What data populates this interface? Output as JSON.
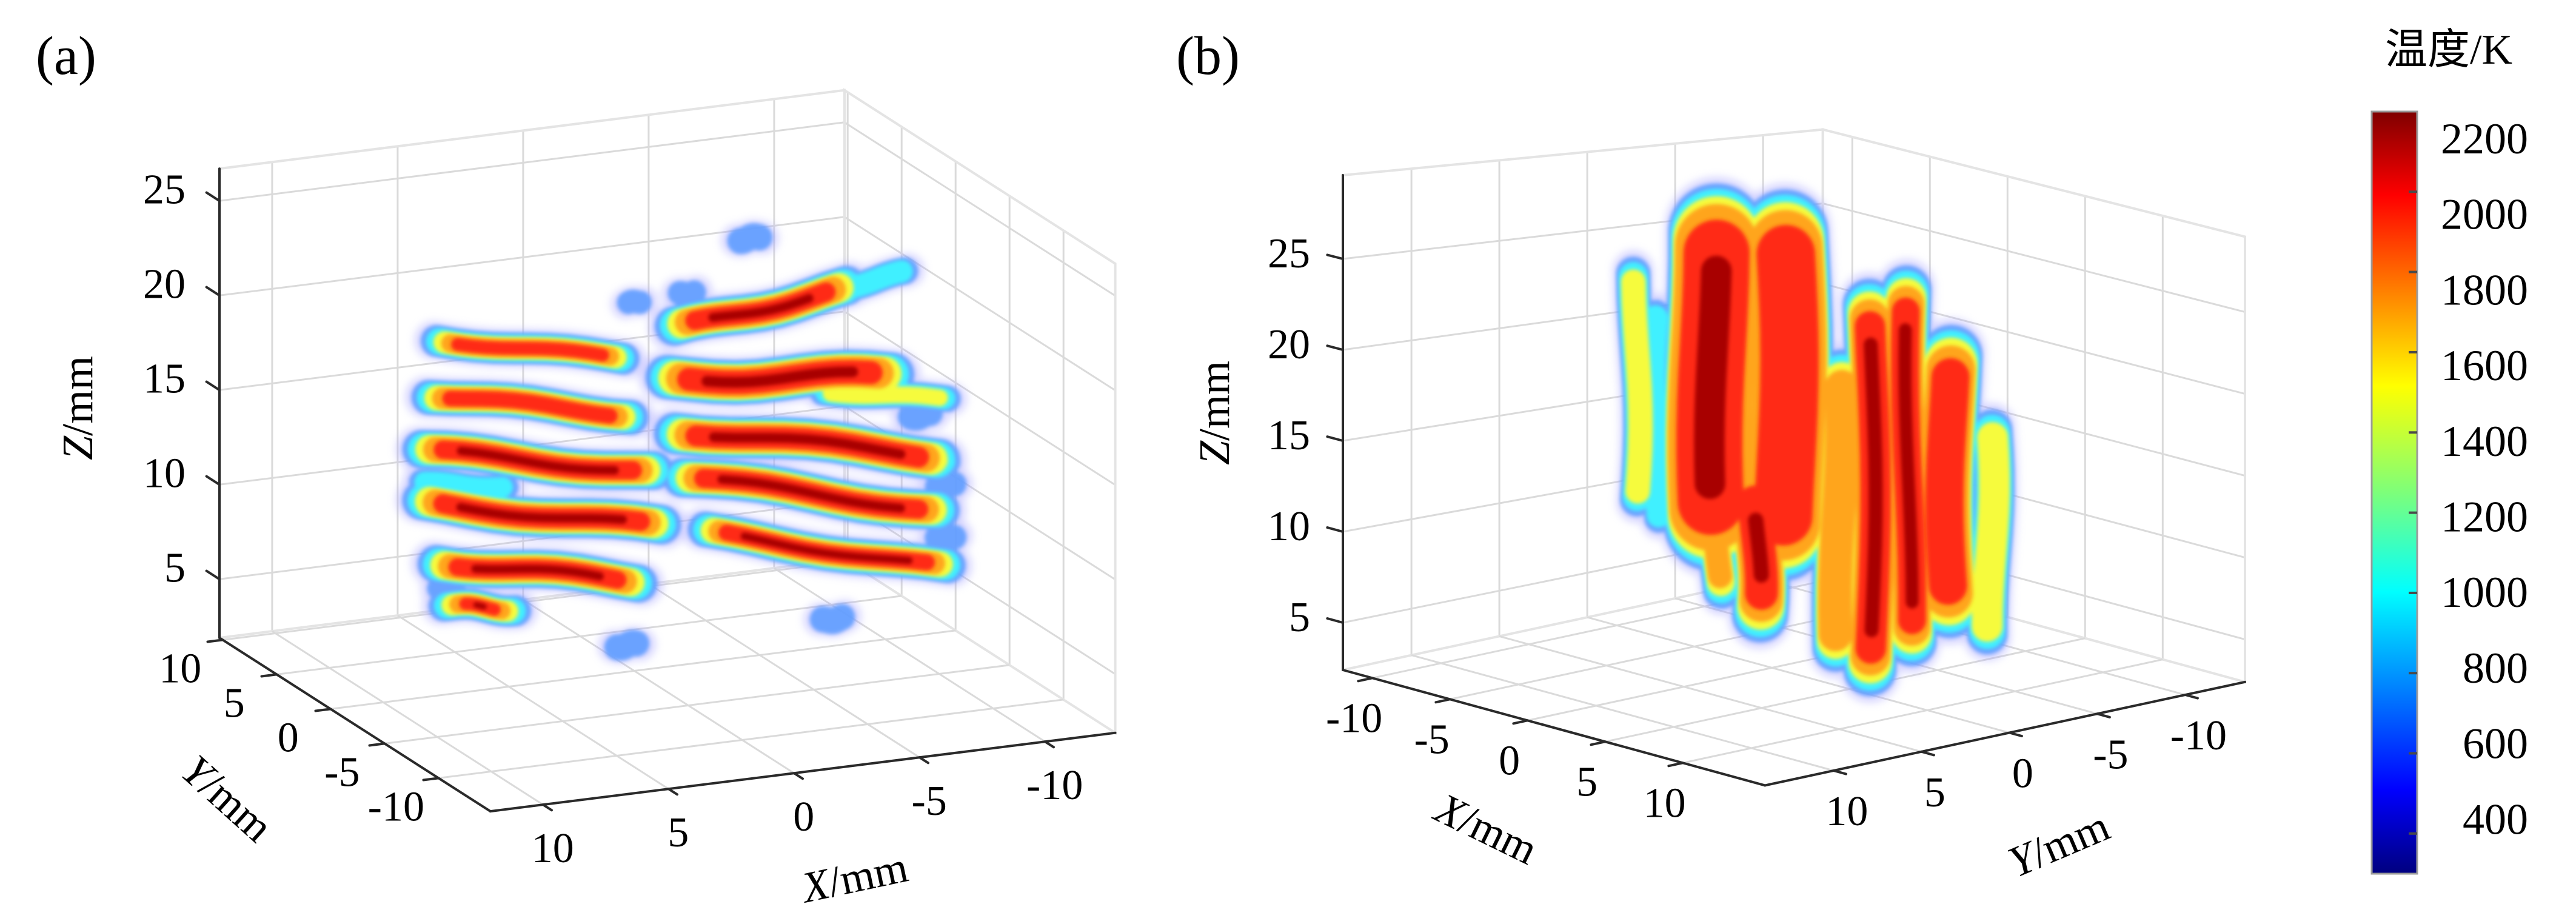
{
  "chart_data": {
    "type": "heatmap",
    "subtype": "3d-volume-temperature-field",
    "colorbar": {
      "title": "温度/K",
      "colormap": "jet",
      "range": [
        300,
        2200
      ],
      "ticks": [
        2200,
        2000,
        1800,
        1600,
        1400,
        1200,
        1000,
        800,
        600,
        400
      ]
    },
    "panels": [
      {
        "label": "(a)",
        "xlabel": "X/mm",
        "ylabel": "Y/mm",
        "zlabel": "Z/mm",
        "xlim": [
          12.1,
          -12.8
        ],
        "ylim": [
          10.3,
          -14.8
        ],
        "zlim": [
          1.9,
          26.7
        ],
        "xticks": [
          10,
          5,
          0,
          -5,
          -10
        ],
        "yticks": [
          10,
          5,
          0,
          -5,
          -10
        ],
        "zticks": [
          5,
          10,
          15,
          20,
          25
        ],
        "grid": true,
        "hot_regions": [
          {
            "shape": "streak",
            "x": [
              8.0,
              0.3
            ],
            "y": 0,
            "z": [
              20.7,
              18.5
            ],
            "half_thickness_mm": 0.42,
            "peak_T": 1900
          },
          {
            "shape": "streak",
            "x": [
              8.3,
              0.0
            ],
            "y": 0,
            "z": [
              17.9,
              15.4
            ],
            "half_thickness_mm": 0.5,
            "peak_T": 2050
          },
          {
            "shape": "streak",
            "x": [
              8.6,
              -0.9
            ],
            "y": 0,
            "z": [
              15.0,
              12.2
            ],
            "half_thickness_mm": 0.6,
            "peak_T": 2150
          },
          {
            "shape": "streak",
            "x": [
              8.6,
              -1.2
            ],
            "y": 0,
            "z": [
              12.2,
              9.3
            ],
            "half_thickness_mm": 0.62,
            "peak_T": 2200
          },
          {
            "shape": "streak",
            "x": [
              8.0,
              -0.3
            ],
            "y": 0,
            "z": [
              9.0,
              6.6
            ],
            "half_thickness_mm": 0.58,
            "peak_T": 2150
          },
          {
            "shape": "streak",
            "x": [
              7.7,
              4.6
            ],
            "y": 0,
            "z": [
              6.7,
              5.9
            ],
            "half_thickness_mm": 0.4,
            "peak_T": 2100
          },
          {
            "shape": "streak",
            "x": [
              -1.5,
              -8.6
            ],
            "y": 0,
            "z": [
              19.7,
              20.7
            ],
            "half_thickness_mm": 0.62,
            "peak_T": 2100
          },
          {
            "shape": "streak",
            "x": [
              -1.2,
              -10.4
            ],
            "y": 0,
            "z": [
              17.1,
              15.8
            ],
            "half_thickness_mm": 0.75,
            "peak_T": 2150
          },
          {
            "shape": "streak",
            "x": [
              -1.5,
              -12.3
            ],
            "y": 0,
            "z": [
              14.4,
              11.2
            ],
            "half_thickness_mm": 0.68,
            "peak_T": 2150
          },
          {
            "shape": "streak",
            "x": [
              -1.8,
              -12.3
            ],
            "y": 0,
            "z": [
              11.9,
              8.3
            ],
            "half_thickness_mm": 0.62,
            "peak_T": 2200
          },
          {
            "shape": "streak",
            "x": [
              -2.7,
              -12.6
            ],
            "y": 0,
            "z": [
              8.8,
              5.2
            ],
            "half_thickness_mm": 0.52,
            "peak_T": 2150
          },
          {
            "shape": "streak",
            "x": [
              -7.4,
              -12.6
            ],
            "y": 0,
            "z": [
              15.4,
              14.2
            ],
            "half_thickness_mm": 0.28,
            "peak_T": 1300
          },
          {
            "shape": "streak",
            "x": [
              -8.1,
              -12.6
            ],
            "y": 0,
            "z": [
              12.5,
              10.9
            ],
            "half_thickness_mm": 0.28,
            "peak_T": 1450
          },
          {
            "shape": "streak",
            "x": [
              8.6,
              5.0
            ],
            "y": 0,
            "z": [
              13.3,
              12.4
            ],
            "half_thickness_mm": 0.25,
            "peak_T": 1100
          },
          {
            "shape": "streak",
            "x": [
              -7.4,
              -10.9
            ],
            "y": 0,
            "z": [
              20.6,
              21.2
            ],
            "half_thickness_mm": 0.3,
            "peak_T": 1250
          },
          {
            "shape": "spot",
            "x": -4.6,
            "y": 0,
            "z": 24.0,
            "radius_mm": 0.5,
            "peak_T": 700
          },
          {
            "shape": "spot",
            "x": 0.0,
            "y": 0,
            "z": 21.4,
            "radius_mm": 0.35,
            "peak_T": 800
          },
          {
            "shape": "spot",
            "x": -2.1,
            "y": 0,
            "z": 21.5,
            "radius_mm": 0.4,
            "peak_T": 800
          },
          {
            "shape": "spot",
            "x": -11.4,
            "y": 0,
            "z": 13.5,
            "radius_mm": 0.5,
            "peak_T": 800
          },
          {
            "shape": "spot",
            "x": -12.4,
            "y": 0,
            "z": 9.7,
            "radius_mm": 0.45,
            "peak_T": 700
          },
          {
            "shape": "spot",
            "x": -12.4,
            "y": 0,
            "z": 6.9,
            "radius_mm": 0.45,
            "peak_T": 700
          },
          {
            "shape": "spot",
            "x": -7.9,
            "y": 0,
            "z": 3.3,
            "radius_mm": 0.5,
            "peak_T": 800
          },
          {
            "shape": "spot",
            "x": 0.3,
            "y": 0,
            "z": 3.3,
            "radius_mm": 0.5,
            "peak_T": 700
          },
          {
            "shape": "spot",
            "x": 7.5,
            "y": 0,
            "z": 7.6,
            "radius_mm": 0.4,
            "peak_T": 800
          }
        ]
      },
      {
        "label": "(b)",
        "xlabel": "X/mm",
        "ylabel": "Y/mm",
        "zlabel": "Z/mm",
        "xlim": [
          -11.9,
          15.3
        ],
        "ylim": [
          13.9,
          -13.4
        ],
        "zlim": [
          2.4,
          29.6
        ],
        "xticks": [
          -10,
          -5,
          0,
          5,
          10
        ],
        "yticks": [
          10,
          5,
          0,
          -5,
          -10
        ],
        "zticks": [
          5,
          10,
          15,
          20,
          25
        ],
        "grid": true,
        "hot_regions": [
          {
            "shape": "column",
            "x": -8.7,
            "y": 0,
            "z": [
              9.9,
              23.4
            ],
            "half_width_mm": 0.6,
            "peak_T": 1300
          },
          {
            "shape": "column",
            "x": -7.5,
            "y": 0,
            "z": [
              9.1,
              21.3
            ],
            "half_width_mm": 0.45,
            "peak_T": 1100
          },
          {
            "shape": "column",
            "x": -3.8,
            "y": 0,
            "z": [
              9.7,
              27.0
            ],
            "half_width_mm": 2.6,
            "peak_T": 2100
          },
          {
            "shape": "column",
            "x": 0.9,
            "y": 0,
            "z": [
              10.0,
              28.0
            ],
            "half_width_mm": 2.3,
            "peak_T": 1950
          },
          {
            "shape": "column",
            "x": -0.9,
            "y": 0,
            "z": [
              5.1,
              13.2
            ],
            "half_width_mm": 1.3,
            "peak_T": 2200
          },
          {
            "shape": "column",
            "x": -3.4,
            "y": 0,
            "z": [
              5.9,
              12.9
            ],
            "half_width_mm": 0.7,
            "peak_T": 1800
          },
          {
            "shape": "column",
            "x": 4.3,
            "y": 0,
            "z": [
              4.4,
              20.7
            ],
            "half_width_mm": 1.0,
            "peak_T": 1700
          },
          {
            "shape": "column",
            "x": 6.45,
            "y": 0,
            "z": [
              3.7,
              25.1
            ],
            "half_width_mm": 1.2,
            "peak_T": 2200
          },
          {
            "shape": "column",
            "x": 8.8,
            "y": 0,
            "z": [
              5.9,
              26.5
            ],
            "half_width_mm": 1.1,
            "peak_T": 2100
          },
          {
            "shape": "column",
            "x": 11.35,
            "y": 0,
            "z": [
              8.5,
              23.3
            ],
            "half_width_mm": 1.5,
            "peak_T": 2050
          },
          {
            "shape": "column",
            "x": 14.1,
            "y": 0,
            "z": [
              7.6,
              19.7
            ],
            "half_width_mm": 0.8,
            "peak_T": 1500
          }
        ]
      }
    ]
  }
}
